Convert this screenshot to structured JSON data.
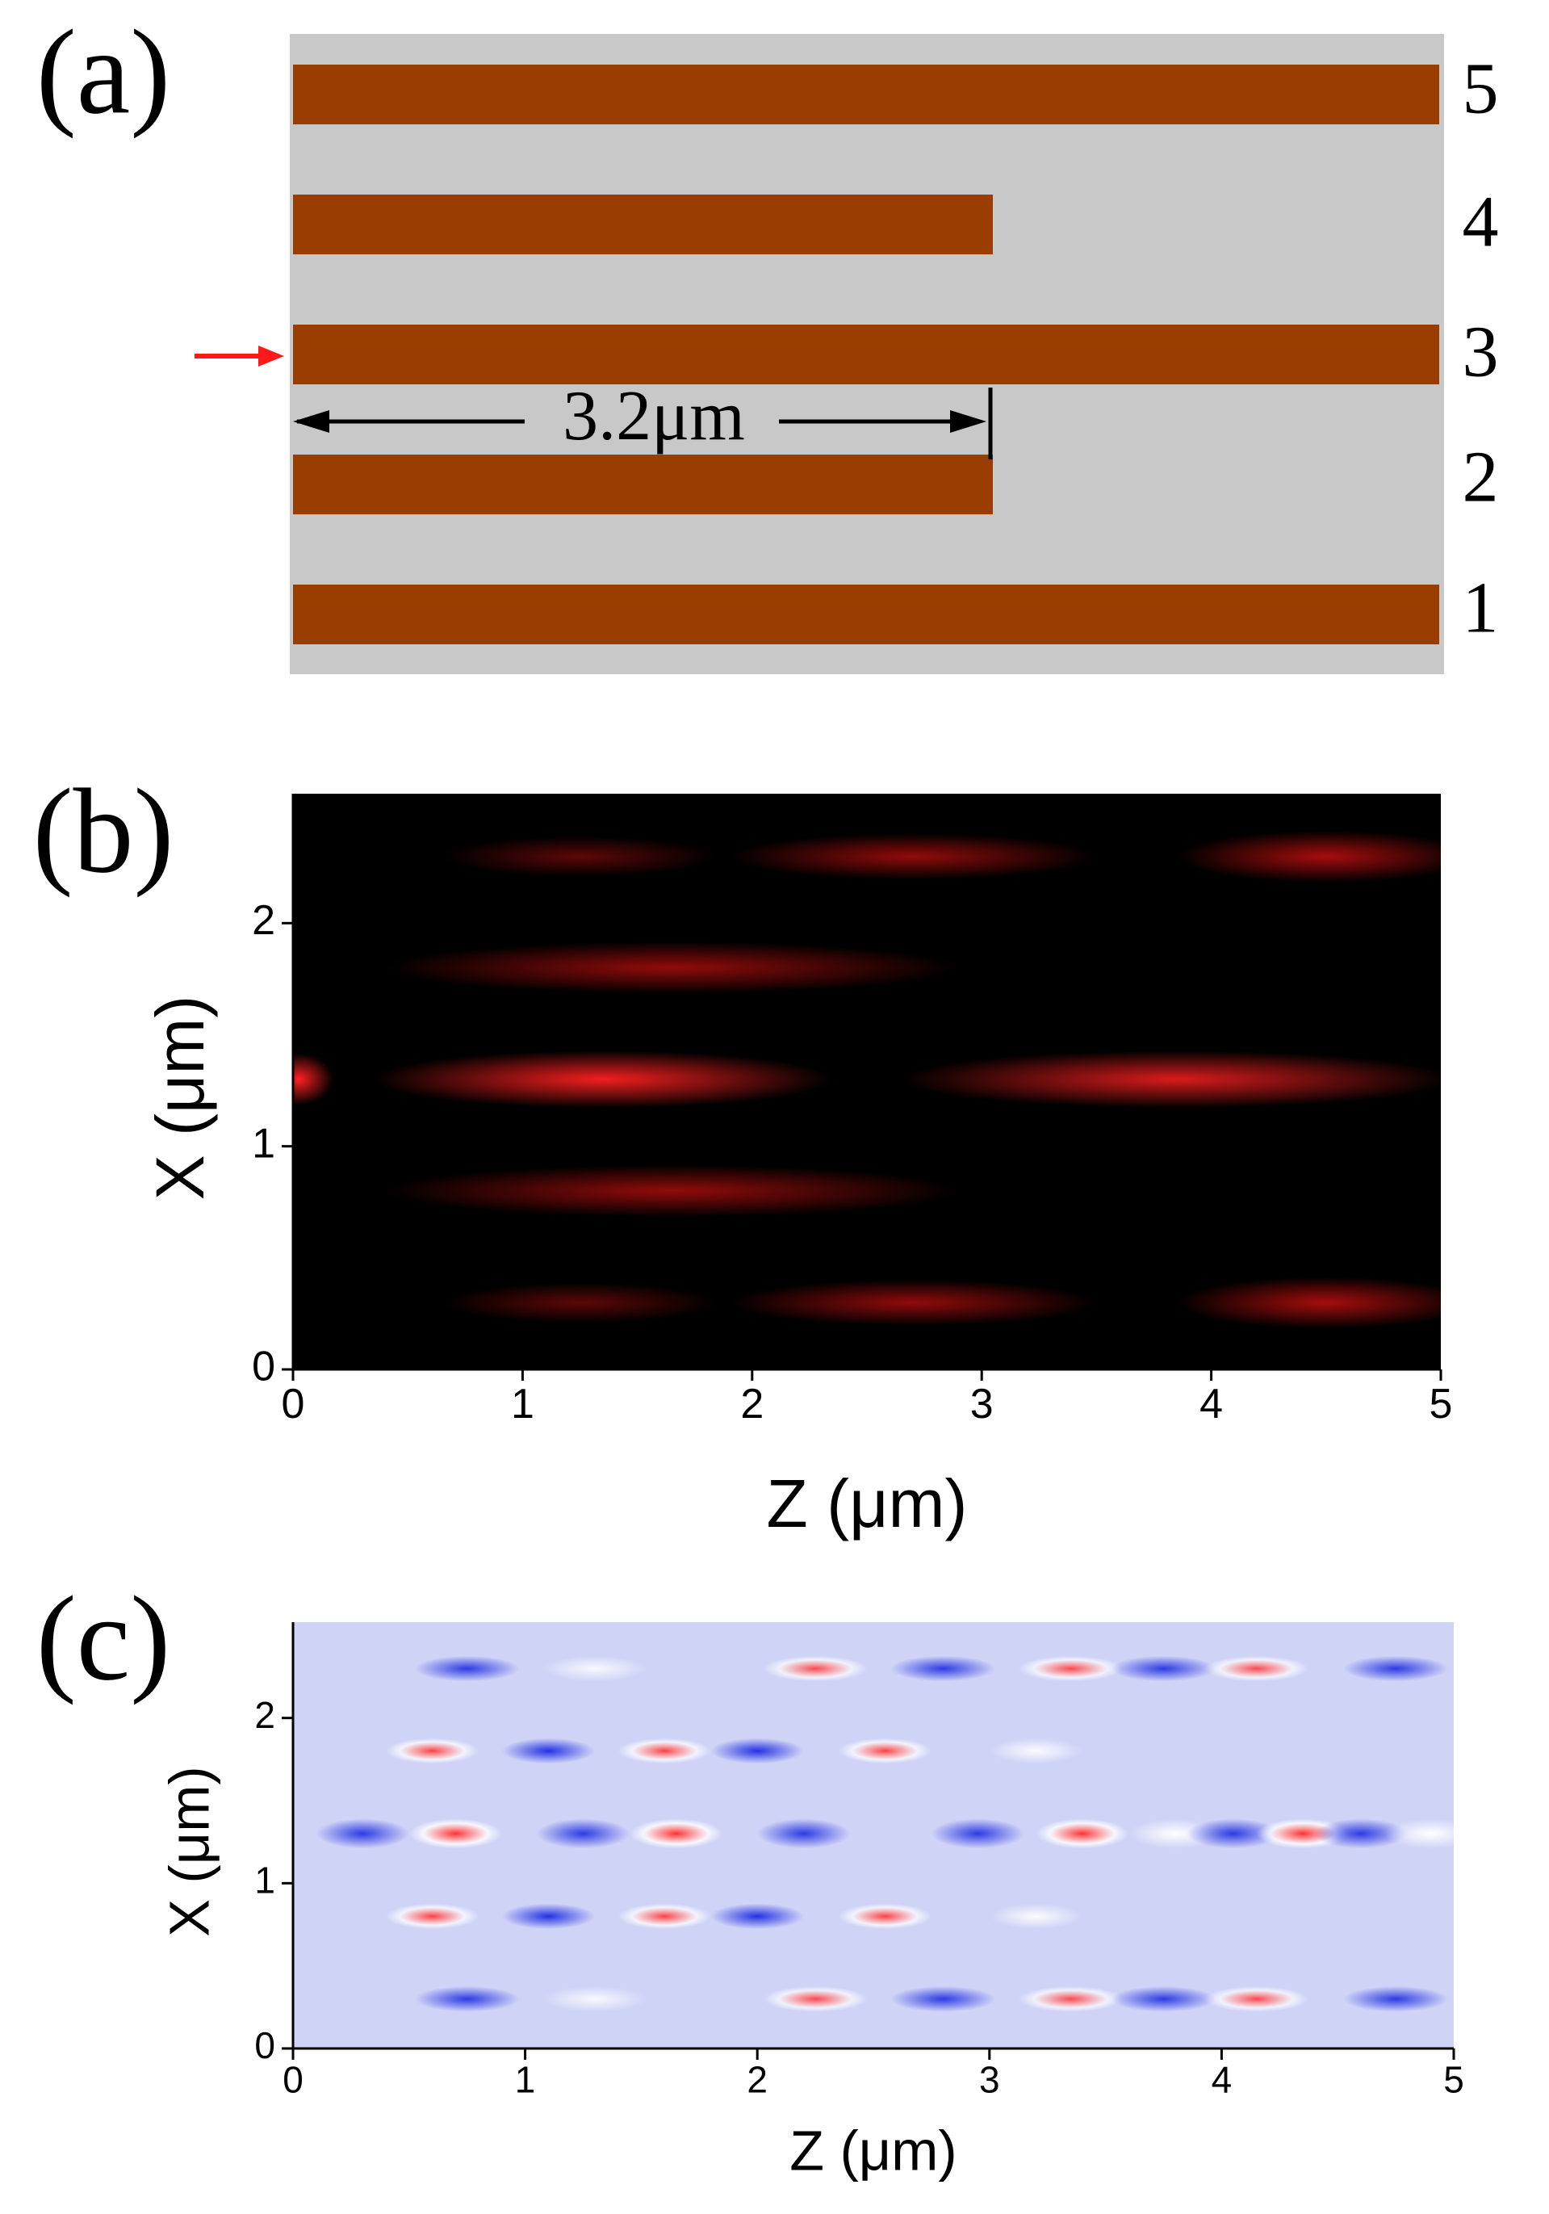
{
  "panel_a": {
    "label": "(a)",
    "waveguide_labels": [
      "1",
      "2",
      "3",
      "4",
      "5"
    ],
    "dimension": "3.2μm"
  },
  "chart_data": [
    {
      "type": "heatmap",
      "label": "(b)",
      "xlabel": "Z (μm)",
      "ylabel": "X (μm)",
      "xlim": [
        0,
        5
      ],
      "ylim": [
        0,
        2.58
      ],
      "xticks": [
        0,
        1,
        2,
        3,
        4,
        5
      ],
      "yticks": [
        0,
        1,
        2
      ],
      "colormap": "intensity"
    },
    {
      "type": "heatmap",
      "label": "(c)",
      "xlabel": "Z (μm)",
      "ylabel": "X (μm)",
      "xlim": [
        0,
        5
      ],
      "ylim": [
        0,
        2.58
      ],
      "xticks": [
        0,
        1,
        2,
        3,
        4,
        5
      ],
      "yticks": [
        0,
        1,
        2
      ],
      "colormap": "field"
    }
  ]
}
